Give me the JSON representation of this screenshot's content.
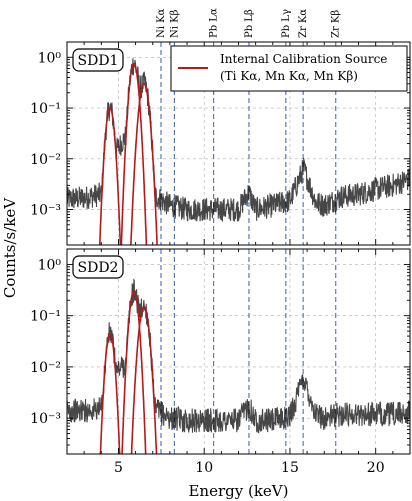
{
  "chart_data": {
    "type": "line",
    "xlabel": "Energy (keV)",
    "ylabel": "Counts/s/keV",
    "xlim": [
      2,
      22
    ],
    "ylim": [
      0.0002,
      2
    ],
    "yscale": "log",
    "x_ticks": [
      5,
      10,
      15,
      20
    ],
    "y_ticks": [
      {
        "value": 0.001,
        "label": "10⁻³"
      },
      {
        "value": 0.01,
        "label": "10⁻²"
      },
      {
        "value": 0.1,
        "label": "10⁻¹"
      },
      {
        "value": 1,
        "label": "10⁰"
      }
    ],
    "grid": true,
    "legend": {
      "location": "top-right",
      "line1": "Internal Calibration Source",
      "line2": "(Ti Kα, Mn Kα, Mn Kβ)"
    },
    "reference_lines": [
      {
        "label": "Ni Kα",
        "energy": 7.48
      },
      {
        "label": "Ni Kβ",
        "energy": 8.26
      },
      {
        "label": "Pb Lα",
        "energy": 10.55
      },
      {
        "label": "Pb Lβ",
        "energy": 12.61
      },
      {
        "label": "Pb Lγ",
        "energy": 14.76
      },
      {
        "label": "Zr Kα",
        "energy": 15.77
      },
      {
        "label": "Zr Kβ",
        "energy": 17.67
      }
    ],
    "calibration_peaks": [
      {
        "label": "Ti Kα",
        "energy": 4.51
      },
      {
        "label": "Mn Kα",
        "energy": 5.9
      },
      {
        "label": "Mn Kβ",
        "energy": 6.49
      }
    ],
    "panels": [
      {
        "name": "SDD1",
        "model_peaks": [
          0.1,
          0.75,
          0.3
        ],
        "data_series": {
          "x": [
            2,
            3,
            4,
            4.5,
            4.9,
            5.5,
            5.9,
            6.2,
            6.5,
            7,
            8,
            9,
            10,
            11,
            12,
            12.6,
            13,
            14,
            15,
            15.8,
            16.5,
            17,
            18,
            19,
            20,
            21,
            22
          ],
          "y": [
            0.0016,
            0.0017,
            0.002,
            0.1,
            0.015,
            0.03,
            0.72,
            0.03,
            0.28,
            0.002,
            0.0012,
            0.001,
            0.001,
            0.001,
            0.001,
            0.0022,
            0.001,
            0.0012,
            0.0015,
            0.0065,
            0.0014,
            0.0012,
            0.0018,
            0.002,
            0.0025,
            0.003,
            0.004
          ]
        }
      },
      {
        "name": "SDD2",
        "model_peaks": [
          0.045,
          0.3,
          0.15
        ],
        "data_series": {
          "x": [
            2,
            3,
            4,
            4.5,
            4.9,
            5.5,
            5.9,
            6.2,
            6.5,
            7,
            8,
            9,
            10,
            11,
            12,
            12.6,
            13,
            14,
            15,
            15.8,
            16.5,
            17,
            18,
            19,
            20,
            21,
            22
          ],
          "y": [
            0.0014,
            0.0014,
            0.0015,
            0.045,
            0.0085,
            0.012,
            0.28,
            0.012,
            0.14,
            0.0016,
            0.001,
            0.0009,
            0.0009,
            0.0009,
            0.0009,
            0.0018,
            0.0009,
            0.0009,
            0.0011,
            0.006,
            0.0012,
            0.001,
            0.0012,
            0.0012,
            0.0012,
            0.0012,
            0.0013
          ]
        }
      }
    ]
  }
}
